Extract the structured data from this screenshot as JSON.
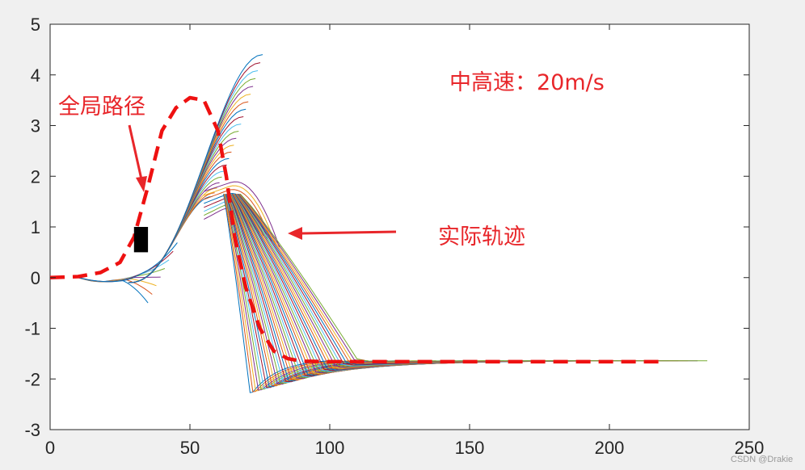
{
  "chart_data": {
    "type": "line",
    "title": "",
    "xlabel": "",
    "ylabel": "",
    "xlim": [
      0,
      250
    ],
    "ylim": [
      -3,
      5
    ],
    "x_ticks": [
      0,
      50,
      100,
      150,
      200,
      250
    ],
    "y_ticks": [
      -3,
      -2,
      -1,
      0,
      1,
      2,
      3,
      4,
      5
    ],
    "x_tick_labels": [
      "0",
      "50",
      "100",
      "150",
      "200",
      "250"
    ],
    "y_tick_labels": [
      "-3",
      "-2",
      "-1",
      "0",
      "1",
      "2",
      "3",
      "4",
      "5"
    ],
    "grid": false,
    "series": [
      {
        "style": "dashed",
        "color": "#ee1111",
        "x": [
          0,
          10,
          18,
          25,
          30,
          35,
          40,
          45,
          50,
          55,
          60,
          63,
          66,
          70,
          75,
          80,
          85,
          90,
          100,
          120,
          150,
          180,
          200,
          220
        ],
        "y": [
          0,
          0.02,
          0.1,
          0.3,
          0.8,
          1.8,
          2.9,
          3.35,
          3.55,
          3.5,
          2.9,
          2.0,
          0.8,
          -0.2,
          -1.0,
          -1.45,
          -1.6,
          -1.65,
          -1.66,
          -1.66,
          -1.66,
          -1.66,
          -1.66,
          -1.66
        ]
      }
    ],
    "annotations": [
      {
        "text": "全局路径",
        "color": "#e8262a"
      },
      {
        "text": "中高速：20m/s",
        "color": "#e8262a"
      },
      {
        "text": "实际轨迹",
        "color": "#e8262a"
      }
    ],
    "vehicle_marker": {
      "x": [
        30,
        35
      ],
      "y": [
        0.5,
        1.0
      ],
      "color": "#000000"
    },
    "trajectory_colors": [
      "#0072bd",
      "#d95319",
      "#edb120",
      "#7e2f8e",
      "#77ac30",
      "#4dbeee",
      "#a2142f"
    ]
  },
  "watermark": "CSDN @Drakie"
}
